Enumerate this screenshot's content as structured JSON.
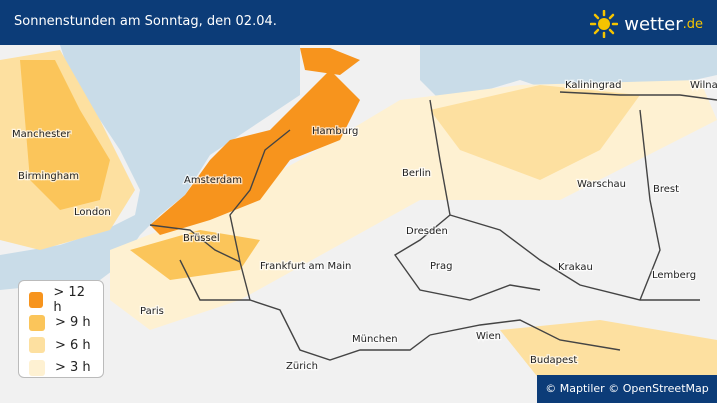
{
  "header": {
    "title": "Sonnenstunden am Sonntag, den 02.04.",
    "logo": "wetter",
    "logo_suffix": ".de"
  },
  "cities": [
    "Manchester",
    "Birmingham",
    "London",
    "Amsterdam",
    "Hamburg",
    "Berlin",
    "Warschau",
    "Kaliningrad",
    "Brest",
    "Wilna",
    "Brüssel",
    "Dresden",
    "Frankfurt am Main",
    "Prag",
    "Krakau",
    "Lemberg",
    "Paris",
    "München",
    "Wien",
    "Budapest",
    "Zürich"
  ],
  "legend": [
    {
      "label": "> 12 h",
      "color": "#f7941d"
    },
    {
      "label": "> 9 h",
      "color": "#fbc55a"
    },
    {
      "label": "> 6 h",
      "color": "#fde0a0"
    },
    {
      "label": "> 3 h",
      "color": "#fef1d2"
    }
  ],
  "attribution": "© Maptiler © OpenStreetMap"
}
